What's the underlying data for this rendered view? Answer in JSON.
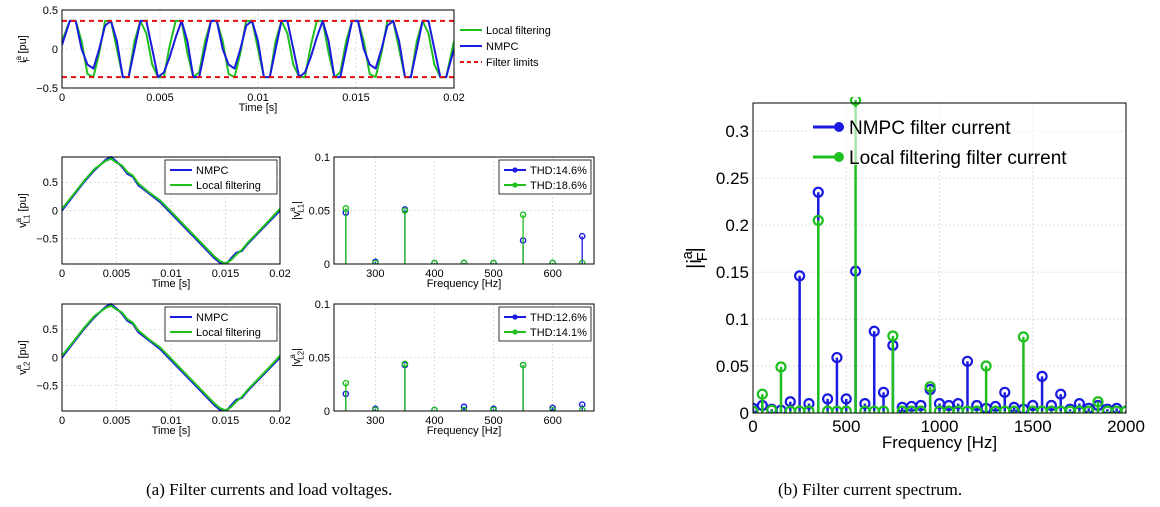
{
  "colors": {
    "blue": "#1a1ae0",
    "green": "#1fbf1f",
    "red": "#e01010"
  },
  "captions": {
    "a": "(a)  Filter currents and load voltages.",
    "b": "(b)  Filter current spectrum."
  },
  "chart_data": [
    {
      "id": "filter-current",
      "type": "line",
      "xlabel": "Time [s]",
      "ylabel": "i_F^a [pu]",
      "xlim": [
        0,
        0.02
      ],
      "ylim": [
        -0.5,
        0.5
      ],
      "xticks": [
        "0",
        "0.005",
        "0.01",
        "0.015",
        "0.02"
      ],
      "yticks": [
        "0.5",
        "0",
        "−0.5"
      ],
      "legend_position": "outside-right",
      "series": [
        {
          "name": "Local filtering",
          "color": "#1fbf1f",
          "x": [
            0,
            0.0004,
            0.0007,
            0.001,
            0.0013,
            0.0016,
            0.0019,
            0.0022,
            0.0025,
            0.0028,
            0.0031,
            0.0034,
            0.0037,
            0.004,
            0.0043,
            0.0046,
            0.0049,
            0.0052,
            0.0055,
            0.0058,
            0.0061,
            0.0064,
            0.0067,
            0.007,
            0.0073,
            0.0076,
            0.0079,
            0.0082,
            0.0085,
            0.0088,
            0.0091,
            0.0094,
            0.0097,
            0.01,
            0.0103,
            0.0106,
            0.0109,
            0.0112,
            0.0115,
            0.0118,
            0.0121,
            0.0124,
            0.0127,
            0.013,
            0.0133,
            0.0136,
            0.0139,
            0.0142,
            0.0145,
            0.0148,
            0.0151,
            0.0154,
            0.0157,
            0.016,
            0.0163,
            0.0166,
            0.0169,
            0.0172,
            0.0175,
            0.0178,
            0.0181,
            0.0184,
            0.0187,
            0.019,
            0.0193,
            0.0196,
            0.02
          ],
          "y": [
            0.1,
            0.36,
            0.36,
            0.1,
            -0.32,
            -0.36,
            -0.05,
            0.36,
            0.36,
            0.0,
            -0.36,
            -0.36,
            0.1,
            0.36,
            0.2,
            -0.2,
            -0.36,
            -0.36,
            0.05,
            0.36,
            0.36,
            -0.05,
            -0.36,
            -0.3,
            0.1,
            0.36,
            0.36,
            0.1,
            -0.32,
            -0.36,
            -0.05,
            0.36,
            0.36,
            0.0,
            -0.36,
            -0.36,
            0.1,
            0.36,
            0.2,
            -0.2,
            -0.36,
            -0.36,
            0.05,
            0.36,
            0.36,
            -0.05,
            -0.36,
            -0.3,
            0.1,
            0.36,
            0.36,
            0.1,
            -0.32,
            -0.36,
            -0.05,
            0.36,
            0.36,
            0.0,
            -0.36,
            -0.36,
            0.1,
            0.36,
            0.2,
            -0.2,
            -0.36,
            -0.36,
            0.1
          ]
        },
        {
          "name": "NMPC",
          "color": "#1a1ae0",
          "x": [
            0,
            0.0004,
            0.0007,
            0.001,
            0.0013,
            0.0016,
            0.0019,
            0.0022,
            0.0025,
            0.0028,
            0.0031,
            0.0034,
            0.0037,
            0.004,
            0.0043,
            0.0046,
            0.0049,
            0.0052,
            0.0055,
            0.0058,
            0.0061,
            0.0064,
            0.0067,
            0.007,
            0.0073,
            0.0076,
            0.0079,
            0.0082,
            0.0085,
            0.0088,
            0.0091,
            0.0094,
            0.0097,
            0.01,
            0.0103,
            0.0106,
            0.0109,
            0.0112,
            0.0115,
            0.0118,
            0.0121,
            0.0124,
            0.0127,
            0.013,
            0.0133,
            0.0136,
            0.0139,
            0.0142,
            0.0145,
            0.0148,
            0.0151,
            0.0154,
            0.0157,
            0.016,
            0.0163,
            0.0166,
            0.0169,
            0.0172,
            0.0175,
            0.0178,
            0.0181,
            0.0184,
            0.0187,
            0.019,
            0.0193,
            0.0196,
            0.02
          ],
          "y": [
            0.05,
            0.36,
            0.36,
            0.0,
            -0.2,
            -0.25,
            0.0,
            0.3,
            0.36,
            0.1,
            -0.36,
            -0.36,
            0.0,
            0.36,
            0.36,
            0.0,
            -0.36,
            -0.3,
            -0.1,
            0.15,
            0.36,
            0.1,
            -0.36,
            -0.36,
            0.0,
            0.36,
            0.36,
            0.0,
            -0.2,
            -0.25,
            0.0,
            0.3,
            0.36,
            0.1,
            -0.36,
            -0.36,
            0.0,
            0.36,
            0.36,
            0.0,
            -0.36,
            -0.3,
            -0.1,
            0.15,
            0.36,
            0.1,
            -0.36,
            -0.36,
            0.0,
            0.36,
            0.36,
            0.0,
            -0.2,
            -0.25,
            0.0,
            0.3,
            0.36,
            0.1,
            -0.36,
            -0.36,
            0.0,
            0.36,
            0.36,
            0.0,
            -0.36,
            -0.36,
            0.0
          ]
        },
        {
          "name": "Filter limits",
          "color": "#e01010",
          "style": "dashed",
          "x": [
            0,
            0.02
          ],
          "y_pos": 0.36,
          "y_neg": -0.36
        }
      ]
    },
    {
      "id": "load-voltage-1",
      "type": "line",
      "xlabel": "Time [s]",
      "ylabel": "v_L1^a [pu]",
      "xlim": [
        0,
        0.02
      ],
      "ylim": [
        -0.95,
        0.95
      ],
      "xticks": [
        "0",
        "0.005",
        "0.01",
        "0.015",
        "0.02"
      ],
      "yticks": [
        "0.5",
        "0",
        "−0.5"
      ],
      "legend_position": "top-right",
      "series": [
        {
          "name": "NMPC",
          "color": "#1a1ae0",
          "x": [
            0,
            0.001,
            0.002,
            0.003,
            0.004,
            0.0045,
            0.005,
            0.0055,
            0.006,
            0.0065,
            0.007,
            0.008,
            0.009,
            0.01,
            0.011,
            0.012,
            0.013,
            0.014,
            0.0145,
            0.015,
            0.0155,
            0.016,
            0.0165,
            0.017,
            0.018,
            0.019,
            0.02
          ],
          "y": [
            0.0,
            0.25,
            0.5,
            0.72,
            0.9,
            0.95,
            0.87,
            0.78,
            0.65,
            0.6,
            0.45,
            0.3,
            0.15,
            -0.05,
            -0.25,
            -0.45,
            -0.65,
            -0.85,
            -0.93,
            -0.97,
            -0.85,
            -0.75,
            -0.72,
            -0.6,
            -0.4,
            -0.2,
            0.0
          ]
        },
        {
          "name": "Local filtering",
          "color": "#1fbf1f",
          "x": [
            0,
            0.001,
            0.002,
            0.003,
            0.004,
            0.0045,
            0.005,
            0.0055,
            0.006,
            0.0065,
            0.007,
            0.008,
            0.009,
            0.01,
            0.011,
            0.012,
            0.013,
            0.014,
            0.0145,
            0.015,
            0.0155,
            0.016,
            0.0165,
            0.017,
            0.018,
            0.019,
            0.02
          ],
          "y": [
            0.03,
            0.27,
            0.52,
            0.74,
            0.88,
            0.92,
            0.85,
            0.8,
            0.68,
            0.62,
            0.48,
            0.32,
            0.18,
            -0.02,
            -0.22,
            -0.42,
            -0.62,
            -0.82,
            -0.9,
            -0.94,
            -0.88,
            -0.78,
            -0.7,
            -0.58,
            -0.38,
            -0.18,
            0.03
          ]
        }
      ]
    },
    {
      "id": "voltage-spectrum-1",
      "type": "stem",
      "xlabel": "Frequency [Hz]",
      "ylabel": "|v_L1^a|",
      "xlim": [
        230,
        670
      ],
      "ylim": [
        0,
        0.1
      ],
      "xticks": [
        "300",
        "400",
        "500",
        "600"
      ],
      "yticks": [
        "0.1",
        "0.05",
        "0"
      ],
      "legend_position": "top-right",
      "series": [
        {
          "name": "THD:14.6%",
          "color": "#1a1ae0",
          "x": [
            250,
            300,
            350,
            400,
            450,
            500,
            550,
            600,
            650
          ],
          "y": [
            0.048,
            0.002,
            0.051,
            0.001,
            0.001,
            0.001,
            0.022,
            0.001,
            0.026
          ]
        },
        {
          "name": "THD:18.6%",
          "color": "#1fbf1f",
          "x": [
            250,
            300,
            350,
            400,
            450,
            500,
            550,
            600,
            650
          ],
          "y": [
            0.052,
            0.001,
            0.05,
            0.001,
            0.001,
            0.001,
            0.046,
            0.001,
            0.001
          ]
        }
      ]
    },
    {
      "id": "load-voltage-2",
      "type": "line",
      "xlabel": "Time [s]",
      "ylabel": "v_L2^a [pu]",
      "xlim": [
        0,
        0.02
      ],
      "ylim": [
        -0.95,
        0.95
      ],
      "xticks": [
        "0",
        "0.005",
        "0.01",
        "0.015",
        "0.02"
      ],
      "yticks": [
        "0.5",
        "0",
        "−0.5"
      ],
      "legend_position": "top-right",
      "series": [
        {
          "name": "NMPC",
          "color": "#1a1ae0",
          "x": [
            0,
            0.001,
            0.002,
            0.003,
            0.004,
            0.0045,
            0.005,
            0.0055,
            0.006,
            0.0065,
            0.007,
            0.008,
            0.009,
            0.01,
            0.011,
            0.012,
            0.013,
            0.014,
            0.0145,
            0.015,
            0.0155,
            0.016,
            0.0165,
            0.017,
            0.018,
            0.019,
            0.02
          ],
          "y": [
            0.0,
            0.25,
            0.5,
            0.72,
            0.9,
            0.95,
            0.87,
            0.78,
            0.65,
            0.6,
            0.45,
            0.3,
            0.15,
            -0.05,
            -0.25,
            -0.45,
            -0.65,
            -0.85,
            -0.93,
            -0.97,
            -0.85,
            -0.75,
            -0.72,
            -0.6,
            -0.4,
            -0.2,
            0.0
          ]
        },
        {
          "name": "Local filtering",
          "color": "#1fbf1f",
          "x": [
            0,
            0.001,
            0.002,
            0.003,
            0.004,
            0.0045,
            0.005,
            0.0055,
            0.006,
            0.0065,
            0.007,
            0.008,
            0.009,
            0.01,
            0.011,
            0.012,
            0.013,
            0.014,
            0.0145,
            0.015,
            0.0155,
            0.016,
            0.0165,
            0.017,
            0.018,
            0.019,
            0.02
          ],
          "y": [
            0.03,
            0.27,
            0.52,
            0.74,
            0.88,
            0.92,
            0.85,
            0.8,
            0.68,
            0.62,
            0.48,
            0.32,
            0.18,
            -0.02,
            -0.22,
            -0.42,
            -0.62,
            -0.82,
            -0.9,
            -0.94,
            -0.88,
            -0.78,
            -0.7,
            -0.58,
            -0.38,
            -0.18,
            0.03
          ]
        }
      ]
    },
    {
      "id": "voltage-spectrum-2",
      "type": "stem",
      "xlabel": "Frequency [Hz]",
      "ylabel": "|v_L2^a|",
      "xlim": [
        230,
        670
      ],
      "ylim": [
        0,
        0.1
      ],
      "xticks": [
        "300",
        "400",
        "500",
        "600"
      ],
      "yticks": [
        "0.1",
        "0.05",
        "0"
      ],
      "legend_position": "top-right",
      "series": [
        {
          "name": "THD:12.6%",
          "color": "#1a1ae0",
          "x": [
            250,
            300,
            350,
            400,
            450,
            500,
            550,
            600,
            650
          ],
          "y": [
            0.016,
            0.002,
            0.043,
            0.001,
            0.004,
            0.002,
            0.043,
            0.003,
            0.006
          ]
        },
        {
          "name": "THD:14.1%",
          "color": "#1fbf1f",
          "x": [
            250,
            300,
            350,
            400,
            450,
            500,
            550,
            600,
            650
          ],
          "y": [
            0.026,
            0.001,
            0.044,
            0.001,
            0.001,
            0.001,
            0.043,
            0.001,
            0.001
          ]
        }
      ]
    },
    {
      "id": "filter-current-spectrum",
      "type": "stem",
      "xlabel": "Frequency [Hz]",
      "ylabel": "|i_F^a|",
      "xlim": [
        0,
        2000
      ],
      "ylim": [
        0,
        0.33
      ],
      "xticks": [
        "0",
        "500",
        "1000",
        "1500",
        "2000"
      ],
      "yticks": [
        "0.3",
        "0.25",
        "0.2",
        "0.15",
        "0.1",
        "0.05",
        "0"
      ],
      "legend_position": "top",
      "series": [
        {
          "name": "NMPC filter current",
          "color": "#1a1ae0",
          "x": [
            0,
            50,
            100,
            150,
            200,
            250,
            300,
            350,
            400,
            450,
            500,
            550,
            600,
            650,
            700,
            750,
            800,
            850,
            900,
            950,
            1000,
            1050,
            1100,
            1150,
            1200,
            1250,
            1300,
            1350,
            1400,
            1450,
            1500,
            1550,
            1600,
            1650,
            1700,
            1750,
            1800,
            1850,
            1900,
            1950,
            2000
          ],
          "y": [
            0.005,
            0.008,
            0.004,
            0.003,
            0.012,
            0.146,
            0.01,
            0.235,
            0.015,
            0.059,
            0.015,
            0.151,
            0.01,
            0.087,
            0.022,
            0.072,
            0.006,
            0.007,
            0.008,
            0.025,
            0.01,
            0.008,
            0.01,
            0.055,
            0.008,
            0.005,
            0.007,
            0.022,
            0.006,
            0.004,
            0.008,
            0.039,
            0.008,
            0.02,
            0.004,
            0.01,
            0.005,
            0.008,
            0.004,
            0.005,
            0.002
          ]
        },
        {
          "name": "Local filtering filter current",
          "color": "#1fbf1f",
          "x": [
            0,
            50,
            100,
            150,
            200,
            250,
            300,
            350,
            400,
            450,
            500,
            550,
            600,
            650,
            700,
            750,
            800,
            850,
            900,
            950,
            1000,
            1050,
            1100,
            1150,
            1200,
            1250,
            1300,
            1350,
            1400,
            1450,
            1500,
            1550,
            1600,
            1650,
            1700,
            1750,
            1800,
            1850,
            1900,
            1950,
            2000
          ],
          "y": [
            0.002,
            0.02,
            0.003,
            0.049,
            0.002,
            0.002,
            0.002,
            0.205,
            0.002,
            0.002,
            0.002,
            0.333,
            0.002,
            0.002,
            0.002,
            0.082,
            0.002,
            0.002,
            0.002,
            0.028,
            0.002,
            0.002,
            0.002,
            0.002,
            0.002,
            0.05,
            0.002,
            0.002,
            0.002,
            0.081,
            0.002,
            0.002,
            0.002,
            0.002,
            0.002,
            0.002,
            0.002,
            0.012,
            0.002,
            0.002,
            0.002
          ]
        }
      ]
    }
  ]
}
